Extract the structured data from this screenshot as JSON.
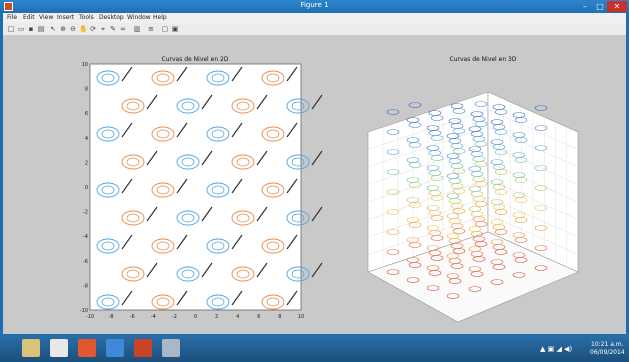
{
  "window": {
    "title": "Figure 1",
    "min_glyph": "–",
    "max_glyph": "□",
    "close_glyph": "✕"
  },
  "menu": [
    {
      "label": "File"
    },
    {
      "label": "Edit"
    },
    {
      "label": "View"
    },
    {
      "label": "Insert"
    },
    {
      "label": "Tools"
    },
    {
      "label": "Desktop"
    },
    {
      "label": "Window"
    },
    {
      "label": "Help"
    }
  ],
  "toolbar": [
    {
      "icon": "new-figure-icon",
      "glyph": "□"
    },
    {
      "icon": "open-file-icon",
      "glyph": "▭"
    },
    {
      "icon": "save-icon",
      "glyph": "▪"
    },
    {
      "icon": "print-icon",
      "glyph": "▤"
    },
    {
      "icon": "pointer-icon",
      "glyph": "↖"
    },
    {
      "icon": "zoom-in-icon",
      "glyph": "⊕"
    },
    {
      "icon": "zoom-out-icon",
      "glyph": "⊖"
    },
    {
      "icon": "pan-icon",
      "glyph": "✋"
    },
    {
      "icon": "rotate-icon",
      "glyph": "⟳"
    },
    {
      "icon": "data-cursor-icon",
      "glyph": "⌖"
    },
    {
      "icon": "brush-icon",
      "glyph": "✎"
    },
    {
      "icon": "link-icon",
      "glyph": "∞"
    },
    {
      "icon": "colorbar-icon",
      "glyph": "▥"
    },
    {
      "icon": "legend-icon",
      "glyph": "≡"
    },
    {
      "icon": "hide-tools-icon",
      "glyph": "▢"
    },
    {
      "icon": "show-tools-icon",
      "glyph": "▣"
    }
  ],
  "plots": {
    "left_title": "Curvas de Nivel en 2D",
    "right_title": "Curvas de Nivel en 3D",
    "left_yticks": [
      "-10",
      "-8",
      "-6",
      "-4",
      "-2",
      "0",
      "2",
      "4",
      "6",
      "8",
      "10"
    ],
    "left_xticks": [
      "-10",
      "-8",
      "-6",
      "-4",
      "-2",
      "0",
      "2",
      "4",
      "6",
      "8",
      "10"
    ],
    "colors": {
      "blue": "#4aa6e0",
      "orange": "#e88a4a",
      "black": "#333333"
    }
  },
  "taskbar": {
    "tray_glyphs": "▲ ▣ ◢ ◀)",
    "time": "10:21 a.m.",
    "date": "06/09/2014"
  }
}
